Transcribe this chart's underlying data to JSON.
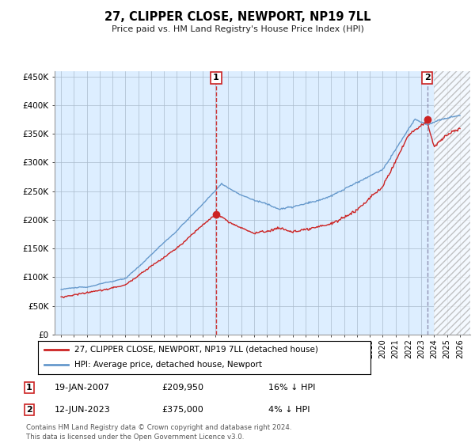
{
  "title": "27, CLIPPER CLOSE, NEWPORT, NP19 7LL",
  "subtitle": "Price paid vs. HM Land Registry's House Price Index (HPI)",
  "ylabel_ticks": [
    "£0",
    "£50K",
    "£100K",
    "£150K",
    "£200K",
    "£250K",
    "£300K",
    "£350K",
    "£400K",
    "£450K"
  ],
  "ytick_values": [
    0,
    50000,
    100000,
    150000,
    200000,
    250000,
    300000,
    350000,
    400000,
    450000
  ],
  "ylim": [
    0,
    460000
  ],
  "xlim_start": 1994.5,
  "xlim_end": 2026.8,
  "hpi_color": "#6699cc",
  "price_color": "#cc2222",
  "marker1_date": 2007.05,
  "marker1_price": 209950,
  "marker1_label": "19-JAN-2007",
  "marker1_amount": "£209,950",
  "marker1_hpi": "16% ↓ HPI",
  "marker2_date": 2023.45,
  "marker2_price": 375000,
  "marker2_label": "12-JUN-2023",
  "marker2_amount": "£375,000",
  "marker2_hpi": "4% ↓ HPI",
  "legend_line1": "27, CLIPPER CLOSE, NEWPORT, NP19 7LL (detached house)",
  "legend_line2": "HPI: Average price, detached house, Newport",
  "footer": "Contains HM Land Registry data © Crown copyright and database right 2024.\nThis data is licensed under the Open Government Licence v3.0.",
  "background_color": "#ffffff",
  "chart_bg_color": "#ddeeff",
  "grid_color": "#aabbcc",
  "hatch_start": 2024.0
}
